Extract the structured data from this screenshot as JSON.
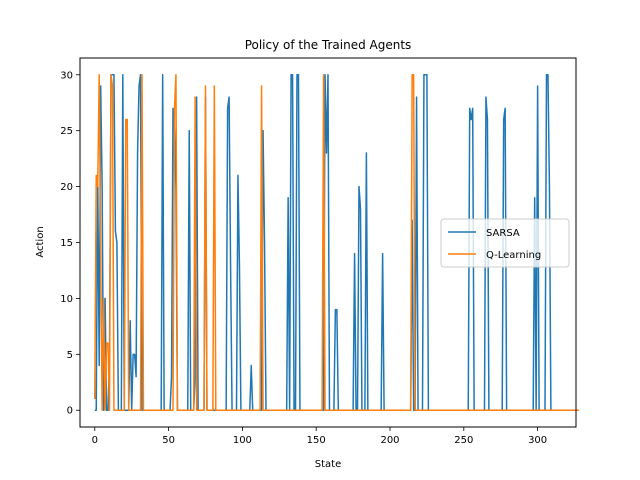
{
  "chart_data": {
    "type": "line",
    "title": "Policy of the Trained Agents",
    "xlabel": "State",
    "ylabel": "Action",
    "xlim": [
      -10,
      326
    ],
    "ylim": [
      -1.5,
      31.5
    ],
    "xticks": [
      0,
      50,
      100,
      150,
      200,
      250,
      300
    ],
    "yticks": [
      0,
      5,
      10,
      15,
      20,
      25,
      30
    ],
    "grid": false,
    "legend_position": "center-right",
    "series": [
      {
        "name": "SARSA",
        "color": "#1f77b4",
        "values": [
          0,
          0,
          21,
          4,
          29,
          20,
          0,
          10,
          0,
          0,
          5,
          30,
          30,
          30,
          16,
          15,
          0,
          0,
          0,
          30,
          0,
          0,
          0,
          0,
          8,
          0,
          5,
          5,
          3,
          23,
          29,
          30,
          0,
          0,
          0,
          0,
          0,
          0,
          0,
          0,
          0,
          0,
          0,
          0,
          0,
          0,
          30,
          0,
          0,
          0,
          0,
          0,
          3,
          27,
          25,
          20,
          0,
          0,
          0,
          0,
          0,
          0,
          0,
          0,
          25,
          0,
          0,
          0,
          3,
          28,
          0,
          0,
          0,
          0,
          0,
          28,
          0,
          0,
          0,
          0,
          0,
          0,
          0,
          0,
          0,
          0,
          0,
          0,
          0,
          0,
          27,
          28,
          13,
          0,
          0,
          0,
          0,
          21,
          13,
          0,
          0,
          0,
          0,
          0,
          0,
          0,
          4,
          0,
          0,
          0,
          0,
          0,
          0,
          0,
          25,
          15,
          0,
          0,
          0,
          0,
          0,
          0,
          0,
          0,
          0,
          0,
          0,
          0,
          0,
          0,
          0,
          19,
          0,
          30,
          30,
          0,
          0,
          30,
          30,
          0,
          0,
          0,
          0,
          0,
          0,
          0,
          0,
          0,
          0,
          0,
          0,
          0,
          0,
          0,
          0,
          0,
          30,
          23,
          30,
          0,
          0,
          0,
          0,
          9,
          9,
          0,
          0,
          0,
          0,
          0,
          0,
          0,
          0,
          0,
          0,
          0,
          14,
          0,
          0,
          20,
          18,
          0,
          0,
          0,
          23,
          0,
          0,
          0,
          0,
          0,
          0,
          0,
          0,
          0,
          0,
          14,
          0,
          0,
          0,
          0,
          0,
          0,
          0,
          0,
          0,
          0,
          0,
          0,
          0,
          0,
          0,
          0,
          0,
          0,
          0,
          17,
          0,
          0,
          28,
          0,
          0,
          0,
          0,
          30,
          30,
          30,
          0,
          0,
          0,
          0,
          0,
          0,
          0,
          0,
          0,
          0,
          0,
          0,
          0,
          0,
          0,
          0,
          0,
          0,
          0,
          0,
          0,
          0,
          0,
          0,
          0,
          0,
          0,
          0,
          27,
          26,
          27,
          0,
          0,
          0,
          0,
          0,
          0,
          0,
          0,
          28,
          26,
          0,
          0,
          0,
          0,
          0,
          0,
          0,
          0,
          0,
          0,
          26,
          27,
          0,
          0,
          0,
          0,
          0,
          0,
          0,
          0,
          0,
          0,
          0,
          0,
          0,
          0,
          0,
          0,
          0,
          0,
          0,
          19,
          0,
          29,
          0,
          0,
          0,
          0,
          0,
          30,
          30,
          20,
          0,
          0,
          0,
          0,
          0,
          0,
          0
        ]
      },
      {
        "name": "Q-Learning",
        "color": "#ff7f0e",
        "values": [
          1,
          21,
          20,
          30,
          14,
          0,
          10,
          0,
          6,
          6,
          0,
          30,
          29,
          0,
          0,
          0,
          0,
          0,
          0,
          0,
          0,
          26,
          26,
          0,
          0,
          0,
          0,
          0,
          0,
          0,
          0,
          0,
          30,
          0,
          0,
          0,
          0,
          0,
          0,
          0,
          0,
          0,
          0,
          0,
          0,
          0,
          0,
          0,
          0,
          0,
          0,
          0,
          0,
          0,
          27,
          30,
          0,
          0,
          0,
          0,
          0,
          0,
          0,
          0,
          0,
          0,
          0,
          0,
          28,
          0,
          0,
          0,
          0,
          0,
          0,
          29,
          0,
          0,
          0,
          0,
          0,
          29,
          0,
          0,
          0,
          0,
          0,
          0,
          0,
          0,
          0,
          0,
          0,
          0,
          0,
          0,
          0,
          0,
          0,
          0,
          0,
          0,
          0,
          0,
          0,
          0,
          0,
          0,
          0,
          0,
          0,
          0,
          0,
          29,
          0,
          0,
          0,
          0,
          0,
          0,
          0,
          0,
          0,
          0,
          0,
          0,
          0,
          0,
          0,
          0,
          0,
          0,
          0,
          0,
          0,
          0,
          0,
          0,
          0,
          0,
          0,
          0,
          0,
          0,
          0,
          0,
          0,
          0,
          0,
          0,
          0,
          0,
          0,
          0,
          0,
          30,
          0,
          0,
          0,
          0,
          0,
          0,
          0,
          0,
          0,
          0,
          0,
          0,
          0,
          0,
          0,
          0,
          0,
          0,
          0,
          0,
          0,
          0,
          0,
          0,
          0,
          0,
          0,
          0,
          0,
          0,
          0,
          0,
          0,
          0,
          0,
          0,
          0,
          0,
          0,
          0,
          0,
          0,
          0,
          0,
          0,
          0,
          0,
          0,
          0,
          0,
          0,
          0,
          0,
          0,
          0,
          0,
          0,
          0,
          0,
          30,
          30,
          0,
          0,
          0,
          0,
          0,
          0,
          0,
          0,
          0,
          0,
          0,
          0,
          0,
          0,
          0,
          0,
          0,
          0,
          0,
          0,
          0,
          0,
          0,
          0,
          0,
          0,
          0,
          0,
          0,
          0,
          0,
          0,
          0,
          0,
          0,
          0,
          0,
          0,
          0,
          0,
          0,
          0,
          0,
          0,
          0,
          0,
          0,
          0,
          0,
          0,
          0,
          0,
          0,
          0,
          0,
          0,
          0,
          0,
          0,
          0,
          0,
          0,
          0,
          0,
          0,
          0,
          0,
          0,
          0,
          0,
          0,
          0,
          0,
          0,
          0,
          0,
          0,
          0,
          0,
          0,
          0,
          0,
          0,
          0,
          0,
          0,
          0,
          0,
          0,
          0,
          0,
          0,
          0,
          0,
          0,
          0,
          0,
          0,
          0,
          0,
          0,
          0,
          0,
          0,
          0,
          0,
          0,
          0,
          0,
          0,
          0,
          0
        ]
      }
    ]
  }
}
